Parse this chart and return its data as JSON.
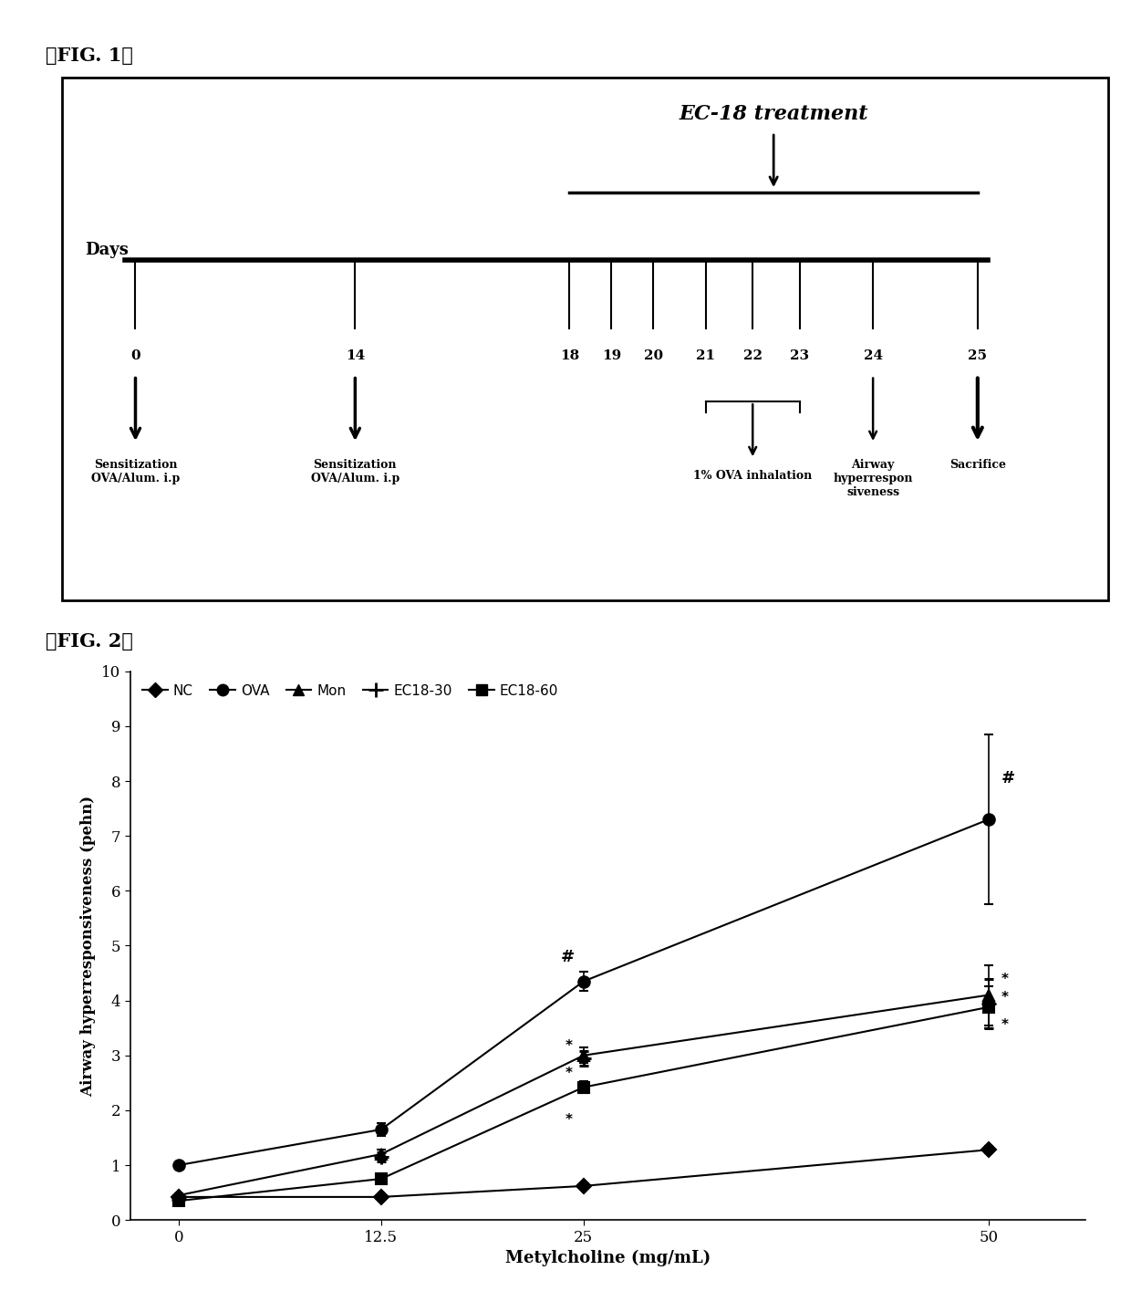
{
  "fig1_label": "【FIG. 1】",
  "fig2_label": "【FIG. 2】",
  "ec18_label": "EC-18 treatment",
  "days_label": "Days",
  "day_positions_norm": {
    "0": 0.07,
    "14": 0.28,
    "18": 0.485,
    "19": 0.525,
    "20": 0.565,
    "21": 0.615,
    "22": 0.66,
    "23": 0.705,
    "24": 0.775,
    "25": 0.875
  },
  "sensitization_0": "Sensitization\nOVA/Alum. i.p",
  "sensitization_14": "Sensitization\nOVA/Alum. i.p",
  "ova_inhalation": "1% OVA inhalation",
  "airway_label": "Airway\nhyperrespon\nsiveness",
  "sacrifice_label": "Sacrifice",
  "fig2": {
    "xlabel": "Metylcholine (mg/mL)",
    "ylabel": "Airway hyperresponsiveness (pehn)",
    "x": [
      0,
      12.5,
      25,
      50
    ],
    "ylim": [
      0,
      10
    ],
    "series": {
      "NC": {
        "y": [
          0.42,
          0.42,
          0.62,
          1.28
        ],
        "yerr": [
          0.04,
          0.04,
          0.04,
          0.07
        ],
        "marker": "D"
      },
      "OVA": {
        "y": [
          1.0,
          1.65,
          4.35,
          7.3
        ],
        "yerr": [
          0.04,
          0.12,
          0.18,
          1.55
        ],
        "marker": "o"
      },
      "Mon": {
        "y": [
          0.45,
          1.2,
          3.0,
          4.1
        ],
        "yerr": [
          0.04,
          0.09,
          0.14,
          0.55
        ],
        "marker": "^"
      },
      "EC18-30": {
        "y": [
          0.38,
          1.15,
          2.95,
          3.95
        ],
        "yerr": [
          0.04,
          0.09,
          0.13,
          0.45
        ],
        "marker": "+"
      },
      "EC18-60": {
        "y": [
          0.35,
          0.75,
          2.42,
          3.88
        ],
        "yerr": [
          0.04,
          0.07,
          0.11,
          0.38
        ],
        "marker": "s"
      }
    }
  },
  "background_color": "#ffffff",
  "text_color": "#000000"
}
